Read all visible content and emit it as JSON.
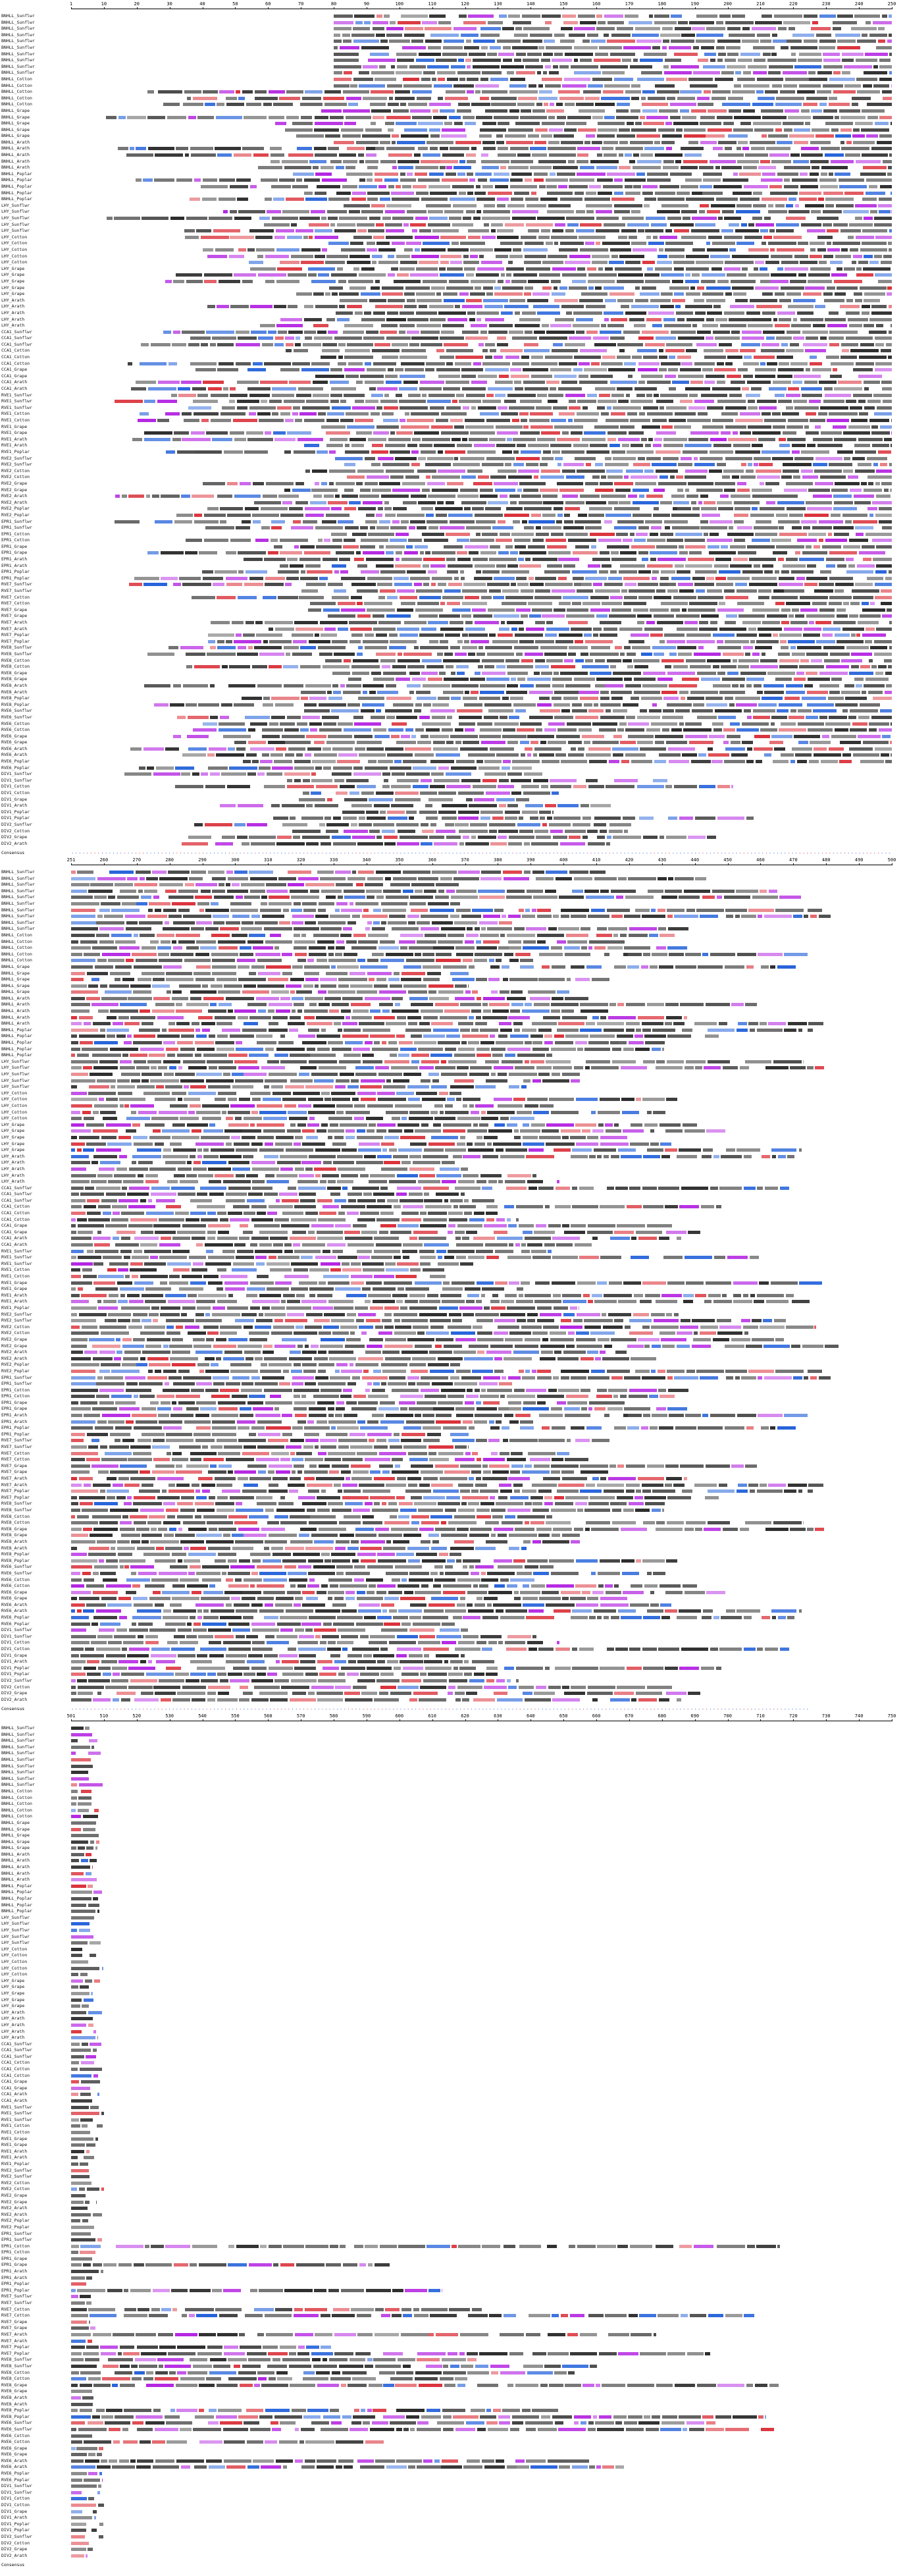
{
  "blocks": [
    {
      "ruler": [
        "1",
        "10",
        "20",
        "30",
        "40",
        "50",
        "60",
        "70",
        "80",
        "90",
        "100",
        "110",
        "120",
        "130",
        "140",
        "150",
        "160",
        "170",
        "180",
        "190",
        "200",
        "210",
        "220",
        "230",
        "240",
        "250"
      ]
    },
    {
      "ruler": [
        "251",
        "260",
        "270",
        "280",
        "290",
        "300",
        "310",
        "320",
        "330",
        "340",
        "350",
        "360",
        "370",
        "380",
        "390",
        "400",
        "410",
        "420",
        "430",
        "440",
        "450",
        "460",
        "470",
        "480",
        "490",
        "500"
      ]
    },
    {
      "ruler": [
        "501",
        "510",
        "520",
        "530",
        "540",
        "550",
        "560",
        "570",
        "580",
        "590",
        "600",
        "610",
        "620",
        "630",
        "640",
        "650",
        "660",
        "670",
        "680",
        "690",
        "700",
        "710",
        "720",
        "730",
        "740",
        "750"
      ]
    }
  ],
  "consensus_label": "Consensus",
  "sequence_names": [
    "BNHLL_Sunflwr",
    "BNHLL_Sunflwr",
    "BNHLL_Sunflwr",
    "BNHLL_Sunflwr",
    "BNHLL_Sunflwr",
    "BNHLL_Sunflwr",
    "BNHLL_Sunflwr",
    "BNHLL_Sunflwr",
    "BNHLL_Sunflwr",
    "BNHLL_Sunflwr",
    "BNHLL_Cotton",
    "BNHLL_Cotton",
    "BNHLL_Cotton",
    "BNHLL_Cotton",
    "BNHLL_Cotton",
    "BNHLL_Grape",
    "BNHLL_Grape",
    "BNHLL_Grape",
    "BNHLL_Grape",
    "BNHLL_Grape",
    "BNHLL_Arath",
    "BNHLL_Arath",
    "BNHLL_Arath",
    "BNHLL_Arath",
    "BNHLL_Arath",
    "BNHLL_Poplar",
    "BNHLL_Poplar",
    "BNHLL_Poplar",
    "BNHLL_Poplar",
    "BNHLL_Poplar",
    "LHY_Sunflwr",
    "LHY_Sunflwr",
    "LHY_Sunflwr",
    "LHY_Sunflwr",
    "LHY_Sunflwr",
    "LHY_Cotton",
    "LHY_Cotton",
    "LHY_Cotton",
    "LHY_Cotton",
    "LHY_Cotton",
    "LHY_Grape",
    "LHY_Grape",
    "LHY_Grape",
    "LHY_Grape",
    "LHY_Grape",
    "LHY_Arath",
    "LHY_Arath",
    "LHY_Arath",
    "LHY_Arath",
    "LHY_Arath",
    "CCA1_Sunflwr",
    "CCA1_Sunflwr",
    "CCA1_Sunflwr",
    "CCA1_Cotton",
    "CCA1_Cotton",
    "CCA1_Cotton",
    "CCA1_Grape",
    "CCA1_Grape",
    "CCA1_Arath",
    "CCA1_Arath",
    "RVE1_Sunflwr",
    "RVE1_Sunflwr",
    "RVE1_Sunflwr",
    "RVE1_Cotton",
    "RVE1_Cotton",
    "RVE1_Grape",
    "RVE1_Grape",
    "RVE1_Arath",
    "RVE1_Arath",
    "RVE1_Poplar",
    "RVE2_Sunflwr",
    "RVE2_Sunflwr",
    "RVE2_Cotton",
    "RVE2_Cotton",
    "RVE2_Grape",
    "RVE2_Grape",
    "RVE2_Arath",
    "RVE2_Arath",
    "RVE2_Poplar",
    "RVE2_Poplar",
    "EPR1_Sunflwr",
    "EPR1_Sunflwr",
    "EPR1_Cotton",
    "EPR1_Cotton",
    "EPR1_Grape",
    "EPR1_Grape",
    "EPR1_Arath",
    "EPR1_Arath",
    "EPR1_Poplar",
    "EPR1_Poplar",
    "RVE7_Sunflwr",
    "RVE7_Sunflwr",
    "RVE7_Cotton",
    "RVE7_Cotton",
    "RVE7_Grape",
    "RVE7_Grape",
    "RVE7_Arath",
    "RVE7_Arath",
    "RVE7_Poplar",
    "RVE7_Poplar",
    "RVE8_Sunflwr",
    "RVE8_Sunflwr",
    "RVE8_Cotton",
    "RVE8_Cotton",
    "RVE8_Grape",
    "RVE8_Grape",
    "RVE8_Arath",
    "RVE8_Arath",
    "RVE8_Poplar",
    "RVE8_Poplar",
    "RVE6_Sunflwr",
    "RVE6_Sunflwr",
    "RVE6_Cotton",
    "RVE6_Cotton",
    "RVE6_Grape",
    "RVE6_Grape",
    "RVE6_Arath",
    "RVE6_Arath",
    "RVE6_Poplar",
    "RVE6_Poplar",
    "DIV1_Sunflwr",
    "DIV1_Sunflwr",
    "DIV1_Cotton",
    "DIV1_Cotton",
    "DIV1_Grape",
    "DIV1_Arath",
    "DIV1_Poplar",
    "DIV1_Poplar",
    "DIV2_Sunflwr",
    "DIV2_Cotton",
    "DIV2_Grape",
    "DIV2_Arath",
    "DIV2_Poplar",
    "DIV3_Sunflwr",
    "DIV3_Cotton",
    "DIV3_Grape",
    "DIV3_Arath",
    "DIV3_Poplar",
    "RAD_Sunflwr",
    "RAD_Cotton",
    "RAD_Grape",
    "RAD_Arath",
    "RAD_Poplar",
    "ERF_Sunflwr",
    "ERF_Cotton",
    "ERF_Grape",
    "ERF_Arath",
    "ERF_Poplar",
    "ERF_Sunflwr",
    "ERF_Cotton"
  ]
}
